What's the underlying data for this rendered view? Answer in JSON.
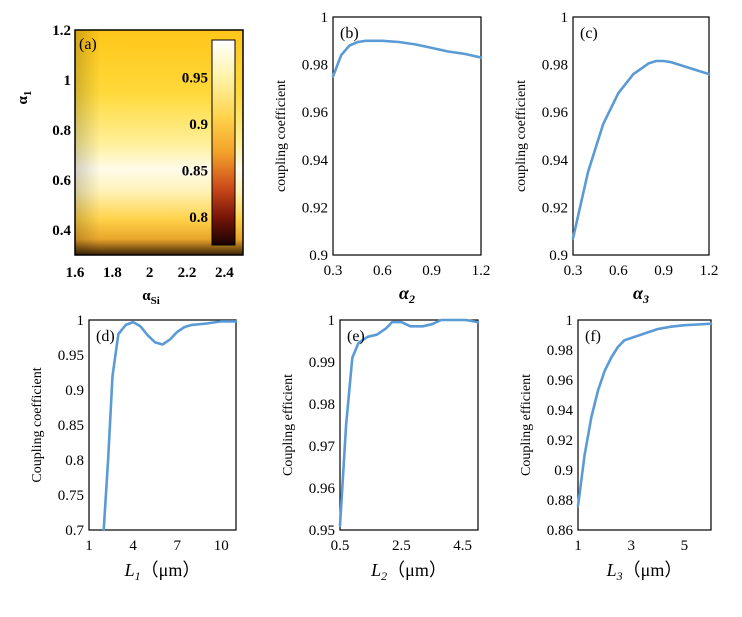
{
  "chart_data": [
    {
      "id": "a",
      "type": "heatmap",
      "panel_label": "(a)",
      "xlabel": "α",
      "xlabel_sub": "Si",
      "ylabel": "α",
      "ylabel_sub": "1",
      "xlim": [
        1.6,
        2.5
      ],
      "ylim": [
        0.3,
        1.2
      ],
      "xticks": [
        "1.6",
        "1.8",
        "2",
        "2.2",
        "2.4"
      ],
      "xtick_values": [
        1.6,
        1.8,
        2.0,
        2.2,
        2.4
      ],
      "yticks": [
        "0.4",
        "0.6",
        "0.8",
        "1",
        "1.2"
      ],
      "ytick_values": [
        0.4,
        0.6,
        0.8,
        1.0,
        1.2
      ],
      "colorbar": {
        "min": 0.77,
        "max": 0.99,
        "ticks": [
          "0.8",
          "0.85",
          "0.9",
          "0.95"
        ],
        "tick_values": [
          0.8,
          0.85,
          0.9,
          0.95
        ]
      },
      "description_values": {
        "peak_alpha1": 0.6,
        "peak_value": 0.99,
        "edge_value": 0.93
      }
    },
    {
      "id": "b",
      "type": "line",
      "panel_label": "(b)",
      "xlabel": "α",
      "xlabel_sub": "2",
      "ylabel": "coupling coefficient",
      "xlim": [
        0.3,
        1.2
      ],
      "ylim": [
        0.9,
        1.0
      ],
      "xticks": [
        "0.3",
        "0.6",
        "0.9",
        "1.2"
      ],
      "xtick_values": [
        0.3,
        0.6,
        0.9,
        1.2
      ],
      "yticks": [
        "0.9",
        "0.92",
        "0.94",
        "0.96",
        "0.98",
        "1"
      ],
      "ytick_values": [
        0.9,
        0.92,
        0.94,
        0.96,
        0.98,
        1.0
      ],
      "x": [
        0.3,
        0.35,
        0.4,
        0.45,
        0.5,
        0.6,
        0.7,
        0.8,
        0.9,
        1.0,
        1.1,
        1.2
      ],
      "y": [
        0.975,
        0.984,
        0.988,
        0.9895,
        0.99,
        0.99,
        0.9895,
        0.9885,
        0.987,
        0.9855,
        0.9845,
        0.983
      ]
    },
    {
      "id": "c",
      "type": "line",
      "panel_label": "(c)",
      "xlabel": "α",
      "xlabel_sub": "3",
      "ylabel": "coupling coefficient",
      "xlim": [
        0.3,
        1.2
      ],
      "ylim": [
        0.9,
        1.0
      ],
      "xticks": [
        "0.3",
        "0.6",
        "0.9",
        "1.2"
      ],
      "xtick_values": [
        0.3,
        0.6,
        0.9,
        1.2
      ],
      "yticks": [
        "0.9",
        "0.92",
        "0.94",
        "0.96",
        "0.98",
        "1"
      ],
      "ytick_values": [
        0.9,
        0.92,
        0.94,
        0.96,
        0.98,
        1.0
      ],
      "x": [
        0.3,
        0.4,
        0.5,
        0.6,
        0.7,
        0.8,
        0.85,
        0.9,
        0.95,
        1.0,
        1.1,
        1.2
      ],
      "y": [
        0.907,
        0.935,
        0.955,
        0.968,
        0.976,
        0.9805,
        0.9815,
        0.9815,
        0.981,
        0.98,
        0.978,
        0.976
      ]
    },
    {
      "id": "d",
      "type": "line",
      "panel_label": "(d)",
      "xlabel": "L",
      "xlabel_sub": "1",
      "xlabel_unit": "（μm）",
      "ylabel": "Coupling coefficient",
      "xlim": [
        1,
        11
      ],
      "ylim": [
        0.7,
        1.0
      ],
      "xticks": [
        "1",
        "4",
        "7",
        "10"
      ],
      "xtick_values": [
        1,
        4,
        7,
        10
      ],
      "yticks": [
        "0.7",
        "0.75",
        "0.8",
        "0.85",
        "0.9",
        "0.95",
        "1"
      ],
      "ytick_values": [
        0.7,
        0.75,
        0.8,
        0.85,
        0.9,
        0.95,
        1.0
      ],
      "x": [
        2.0,
        2.3,
        2.6,
        3.0,
        3.5,
        4.0,
        4.5,
        5.0,
        5.5,
        6.0,
        6.5,
        7.0,
        7.5,
        8.0,
        9.0,
        10.0,
        11.0
      ],
      "y": [
        0.7,
        0.8,
        0.92,
        0.98,
        0.993,
        0.997,
        0.991,
        0.978,
        0.968,
        0.965,
        0.972,
        0.983,
        0.99,
        0.993,
        0.995,
        0.998,
        0.998
      ]
    },
    {
      "id": "e",
      "type": "line",
      "panel_label": "(e)",
      "xlabel": "L",
      "xlabel_sub": "2",
      "xlabel_unit": "（μm）",
      "ylabel": "Coupling efficient",
      "xlim": [
        0.5,
        5.0
      ],
      "ylim": [
        0.95,
        1.0
      ],
      "xticks": [
        "0.5",
        "2.5",
        "4.5"
      ],
      "xtick_values": [
        0.5,
        2.5,
        4.5
      ],
      "yticks": [
        "0.95",
        "0.96",
        "0.97",
        "0.98",
        "0.99",
        "1"
      ],
      "ytick_values": [
        0.95,
        0.96,
        0.97,
        0.98,
        0.99,
        1.0
      ],
      "x": [
        0.5,
        0.7,
        0.9,
        1.1,
        1.4,
        1.7,
        2.0,
        2.2,
        2.5,
        2.8,
        3.2,
        3.5,
        3.8,
        4.2,
        4.6,
        5.0
      ],
      "y": [
        0.951,
        0.975,
        0.991,
        0.9945,
        0.996,
        0.9965,
        0.998,
        0.9995,
        0.9995,
        0.9985,
        0.9985,
        0.999,
        1.0,
        1.0,
        1.0,
        0.9995
      ]
    },
    {
      "id": "f",
      "type": "line",
      "panel_label": "(f)",
      "xlabel": "L",
      "xlabel_sub": "3",
      "xlabel_unit": "（μm）",
      "ylabel": "Coupling efficient",
      "xlim": [
        1,
        6
      ],
      "ylim": [
        0.86,
        1.0
      ],
      "xticks": [
        "1",
        "3",
        "5"
      ],
      "xtick_values": [
        1,
        3,
        5
      ],
      "yticks": [
        "0.86",
        "0.88",
        "0.9",
        "0.92",
        "0.94",
        "0.96",
        "0.98",
        "1"
      ],
      "ytick_values": [
        0.86,
        0.88,
        0.9,
        0.92,
        0.94,
        0.96,
        0.98,
        1.0
      ],
      "x": [
        1.0,
        1.25,
        1.5,
        1.75,
        2.0,
        2.25,
        2.5,
        2.75,
        3.0,
        3.5,
        4.0,
        4.5,
        5.0,
        5.5,
        6.0
      ],
      "y": [
        0.876,
        0.91,
        0.935,
        0.953,
        0.966,
        0.975,
        0.982,
        0.9865,
        0.988,
        0.991,
        0.994,
        0.9955,
        0.9965,
        0.997,
        0.9975
      ]
    }
  ],
  "colors": {
    "line": "#5b9bd5",
    "frame": "#000000"
  }
}
